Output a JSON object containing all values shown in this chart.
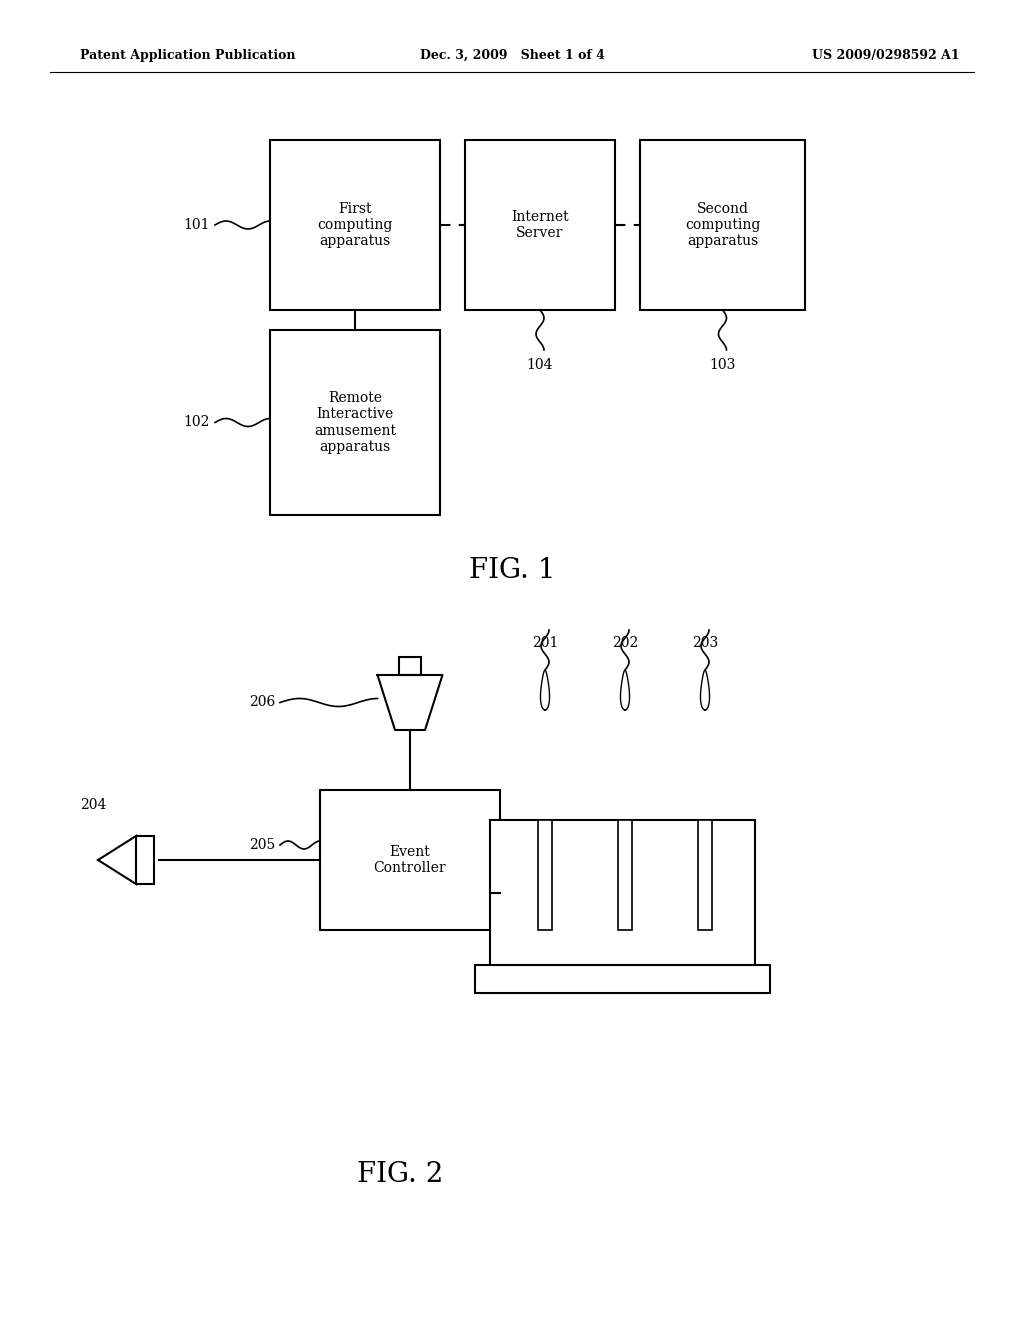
{
  "bg_color": "#ffffff",
  "header_left": "Patent Application Publication",
  "header_mid": "Dec. 3, 2009   Sheet 1 of 4",
  "header_right": "US 2009/0298592 A1",
  "fig1_title": "FIG. 1",
  "fig2_title": "FIG. 2",
  "box1_label": "First\ncomputing\napparatus",
  "box2_label": "Internet\nServer",
  "box3_label": "Second\ncomputing\napparatus",
  "box4_label": "Remote\nInteractive\namusement\napparatus",
  "event_controller_label": "Event\nController",
  "label_101": "101",
  "label_102": "102",
  "label_103": "103",
  "label_104": "104",
  "label_201": "201",
  "label_202": "202",
  "label_203": "203",
  "label_204": "204",
  "label_205": "205",
  "label_206": "206"
}
